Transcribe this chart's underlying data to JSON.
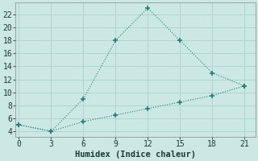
{
  "line1_x": [
    0,
    3,
    6,
    9,
    12,
    15,
    18,
    21
  ],
  "line1_y": [
    5,
    4,
    9,
    18,
    23,
    18,
    13,
    11
  ],
  "line2_x": [
    0,
    3,
    6,
    9,
    12,
    15,
    18,
    21
  ],
  "line2_y": [
    5,
    4,
    5.5,
    6.5,
    7.5,
    8.5,
    9.5,
    11
  ],
  "line_color": "#2a7d72",
  "bg_color": "#cce8e4",
  "grid_color": "#b0d4cf",
  "xlabel": "Humidex (Indice chaleur)",
  "xlabel_fontsize": 7.5,
  "xticks": [
    0,
    3,
    6,
    9,
    12,
    15,
    18,
    21
  ],
  "yticks": [
    4,
    6,
    8,
    10,
    12,
    14,
    16,
    18,
    20,
    22
  ],
  "xlim": [
    -0.3,
    22.0
  ],
  "ylim": [
    3.2,
    23.8
  ],
  "tick_fontsize": 7
}
